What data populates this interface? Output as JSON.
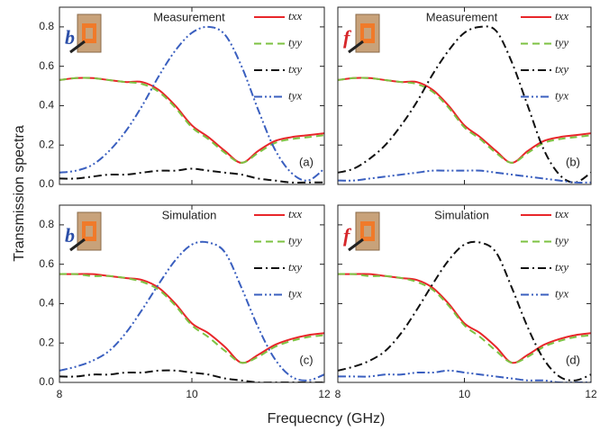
{
  "axis_labels": {
    "y": "Transmission spectra",
    "x": "Frequecncy (GHz)"
  },
  "chart_data": [
    {
      "type": "line",
      "title": "Measurement",
      "panel_label": "(a)",
      "icon_label": "b",
      "icon_color": "#2c4fa8",
      "x": [
        8,
        8.25,
        8.5,
        8.75,
        9,
        9.25,
        9.5,
        9.75,
        10,
        10.25,
        10.5,
        10.75,
        11,
        11.25,
        11.5,
        11.75,
        12
      ],
      "series": [
        {
          "name": "txx",
          "color": "#e8262a",
          "dash": "solid",
          "values": [
            0.53,
            0.54,
            0.54,
            0.53,
            0.52,
            0.52,
            0.48,
            0.4,
            0.3,
            0.24,
            0.17,
            0.11,
            0.17,
            0.22,
            0.24,
            0.25,
            0.26
          ]
        },
        {
          "name": "tyy",
          "color": "#7dc242",
          "dash": "dashed",
          "values": [
            0.53,
            0.54,
            0.54,
            0.53,
            0.52,
            0.51,
            0.47,
            0.39,
            0.29,
            0.23,
            0.16,
            0.11,
            0.16,
            0.21,
            0.23,
            0.24,
            0.25
          ]
        },
        {
          "name": "txy",
          "color": "#111111",
          "dash": "dashdot",
          "values": [
            0.03,
            0.03,
            0.04,
            0.05,
            0.05,
            0.06,
            0.07,
            0.07,
            0.08,
            0.07,
            0.06,
            0.05,
            0.03,
            0.02,
            0.01,
            0.01,
            0.01
          ]
        },
        {
          "name": "tyx",
          "color": "#3a5fbf",
          "dash": "dashdotdot",
          "values": [
            0.06,
            0.07,
            0.1,
            0.17,
            0.27,
            0.4,
            0.55,
            0.68,
            0.77,
            0.8,
            0.76,
            0.6,
            0.38,
            0.18,
            0.06,
            0.02,
            0.08
          ]
        }
      ],
      "xlim": [
        8,
        12
      ],
      "ylim": [
        0,
        0.9
      ],
      "xticks": [
        8,
        10,
        12
      ],
      "xtick_labels": false,
      "yticks": [
        {
          "value": 0,
          "label": "0.0"
        },
        {
          "value": 0.2,
          "label": "0.2"
        },
        {
          "value": 0.4,
          "label": "0.4"
        },
        {
          "value": 0.6,
          "label": "0.6"
        },
        {
          "value": 0.8,
          "label": "0.8"
        }
      ],
      "ytick_labels": true,
      "legend": "upper right"
    },
    {
      "type": "line",
      "title": "Measurement",
      "panel_label": "(b)",
      "icon_label": "f",
      "icon_color": "#d6262a",
      "x": [
        8,
        8.25,
        8.5,
        8.75,
        9,
        9.25,
        9.5,
        9.75,
        10,
        10.25,
        10.5,
        10.75,
        11,
        11.25,
        11.5,
        11.75,
        12
      ],
      "series": [
        {
          "name": "txx",
          "color": "#e8262a",
          "dash": "solid",
          "values": [
            0.53,
            0.54,
            0.54,
            0.53,
            0.52,
            0.52,
            0.48,
            0.4,
            0.3,
            0.24,
            0.17,
            0.11,
            0.17,
            0.22,
            0.24,
            0.25,
            0.26
          ]
        },
        {
          "name": "tyy",
          "color": "#7dc242",
          "dash": "dashed",
          "values": [
            0.53,
            0.54,
            0.54,
            0.53,
            0.52,
            0.51,
            0.47,
            0.39,
            0.29,
            0.23,
            0.16,
            0.11,
            0.16,
            0.21,
            0.23,
            0.24,
            0.25
          ]
        },
        {
          "name": "txy",
          "color": "#111111",
          "dash": "dashdot",
          "values": [
            0.06,
            0.08,
            0.13,
            0.2,
            0.3,
            0.42,
            0.56,
            0.68,
            0.77,
            0.8,
            0.78,
            0.62,
            0.4,
            0.18,
            0.05,
            0.01,
            0.06
          ]
        },
        {
          "name": "tyx",
          "color": "#3a5fbf",
          "dash": "dashdotdot",
          "values": [
            0.02,
            0.02,
            0.03,
            0.04,
            0.05,
            0.06,
            0.07,
            0.07,
            0.07,
            0.07,
            0.06,
            0.05,
            0.04,
            0.03,
            0.02,
            0.01,
            0.01
          ]
        }
      ],
      "xlim": [
        8,
        12
      ],
      "ylim": [
        0,
        0.9
      ],
      "xticks": [
        8,
        10,
        12
      ],
      "xtick_labels": false,
      "yticks": [
        0,
        0.2,
        0.4,
        0.6,
        0.8
      ],
      "ytick_labels": false,
      "legend": "upper right"
    },
    {
      "type": "line",
      "title": "Simulation",
      "panel_label": "(c)",
      "icon_label": "b",
      "icon_color": "#2c4fa8",
      "x": [
        8,
        8.25,
        8.5,
        8.75,
        9,
        9.25,
        9.5,
        9.75,
        10,
        10.25,
        10.5,
        10.75,
        11,
        11.25,
        11.5,
        11.75,
        12
      ],
      "series": [
        {
          "name": "txx",
          "color": "#e8262a",
          "dash": "solid",
          "values": [
            0.55,
            0.55,
            0.55,
            0.54,
            0.53,
            0.52,
            0.48,
            0.4,
            0.3,
            0.25,
            0.18,
            0.1,
            0.14,
            0.19,
            0.22,
            0.24,
            0.25
          ]
        },
        {
          "name": "tyy",
          "color": "#7dc242",
          "dash": "dashed",
          "values": [
            0.55,
            0.55,
            0.54,
            0.54,
            0.53,
            0.51,
            0.47,
            0.39,
            0.29,
            0.23,
            0.16,
            0.1,
            0.13,
            0.18,
            0.21,
            0.23,
            0.24
          ]
        },
        {
          "name": "txy",
          "color": "#111111",
          "dash": "dashdot",
          "values": [
            0.03,
            0.03,
            0.04,
            0.04,
            0.05,
            0.05,
            0.06,
            0.06,
            0.05,
            0.04,
            0.02,
            0.01,
            0.0,
            0.0,
            0.0,
            0.0,
            0.0
          ]
        },
        {
          "name": "tyx",
          "color": "#3a5fbf",
          "dash": "dashdotdot",
          "values": [
            0.06,
            0.08,
            0.11,
            0.16,
            0.25,
            0.37,
            0.5,
            0.62,
            0.7,
            0.71,
            0.66,
            0.48,
            0.28,
            0.12,
            0.03,
            0.01,
            0.04
          ]
        }
      ],
      "xlim": [
        8,
        12
      ],
      "ylim": [
        0,
        0.9
      ],
      "xticks": [
        8,
        10,
        12
      ],
      "xtick_labels": true,
      "yticks": [
        {
          "value": 0,
          "label": "0.0"
        },
        {
          "value": 0.2,
          "label": "0.2"
        },
        {
          "value": 0.4,
          "label": "0.4"
        },
        {
          "value": 0.6,
          "label": "0.6"
        },
        {
          "value": 0.8,
          "label": "0.8"
        }
      ],
      "ytick_labels": true,
      "legend": "upper right"
    },
    {
      "type": "line",
      "title": "Simulation",
      "panel_label": "(d)",
      "icon_label": "f",
      "icon_color": "#d6262a",
      "x": [
        8,
        8.25,
        8.5,
        8.75,
        9,
        9.25,
        9.5,
        9.75,
        10,
        10.25,
        10.5,
        10.75,
        11,
        11.25,
        11.5,
        11.75,
        12
      ],
      "series": [
        {
          "name": "txx",
          "color": "#e8262a",
          "dash": "solid",
          "values": [
            0.55,
            0.55,
            0.55,
            0.54,
            0.53,
            0.52,
            0.48,
            0.4,
            0.3,
            0.25,
            0.18,
            0.1,
            0.14,
            0.19,
            0.22,
            0.24,
            0.25
          ]
        },
        {
          "name": "tyy",
          "color": "#7dc242",
          "dash": "dashed",
          "values": [
            0.55,
            0.55,
            0.54,
            0.54,
            0.53,
            0.51,
            0.47,
            0.39,
            0.29,
            0.23,
            0.16,
            0.1,
            0.13,
            0.18,
            0.21,
            0.23,
            0.24
          ]
        },
        {
          "name": "txy",
          "color": "#111111",
          "dash": "dashdot",
          "values": [
            0.06,
            0.08,
            0.11,
            0.16,
            0.25,
            0.37,
            0.5,
            0.62,
            0.7,
            0.71,
            0.66,
            0.48,
            0.28,
            0.12,
            0.03,
            0.01,
            0.04
          ]
        },
        {
          "name": "tyx",
          "color": "#3a5fbf",
          "dash": "dashdotdot",
          "values": [
            0.03,
            0.03,
            0.03,
            0.04,
            0.04,
            0.05,
            0.05,
            0.06,
            0.05,
            0.04,
            0.03,
            0.02,
            0.01,
            0.01,
            0.0,
            0.0,
            0.0
          ]
        }
      ],
      "xlim": [
        8,
        12
      ],
      "ylim": [
        0,
        0.9
      ],
      "xticks": [
        8,
        10,
        12
      ],
      "xtick_labels": true,
      "yticks": [
        0,
        0.2,
        0.4,
        0.6,
        0.8
      ],
      "ytick_labels": false,
      "legend": "upper right"
    }
  ]
}
